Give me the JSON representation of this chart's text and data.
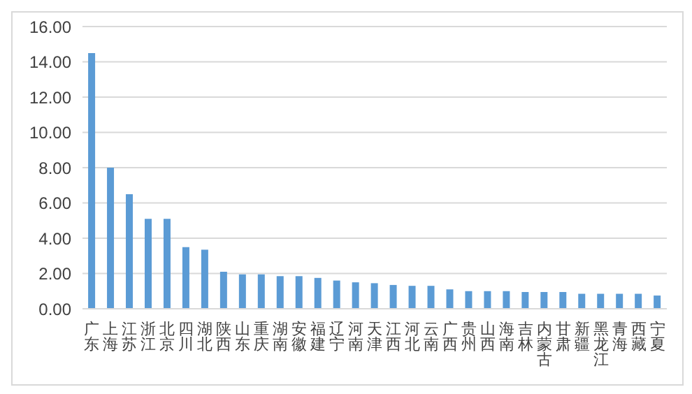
{
  "chart_data": {
    "type": "bar",
    "categories": [
      "广东",
      "上海",
      "江苏",
      "浙江",
      "北京",
      "四川",
      "湖北",
      "陕西",
      "山东",
      "重庆",
      "湖南",
      "安徽",
      "福建",
      "辽宁",
      "河南",
      "天津",
      "江西",
      "河北",
      "云南",
      "广西",
      "贵州",
      "山西",
      "海南",
      "吉林",
      "内蒙古",
      "甘肃",
      "新疆",
      "黑龙江",
      "青海",
      "西藏",
      "宁夏"
    ],
    "values": [
      14.5,
      8.0,
      6.5,
      5.1,
      5.1,
      3.5,
      3.35,
      2.1,
      1.95,
      1.95,
      1.85,
      1.85,
      1.75,
      1.6,
      1.5,
      1.45,
      1.35,
      1.3,
      1.3,
      1.1,
      1.0,
      1.0,
      1.0,
      0.95,
      0.95,
      0.95,
      0.85,
      0.85,
      0.85,
      0.85,
      0.75
    ],
    "color": "#5b9bd5",
    "ylim": [
      0,
      16
    ],
    "yticks": [
      {
        "value": 0,
        "label": "0.00"
      },
      {
        "value": 2,
        "label": "2.00"
      },
      {
        "value": 4,
        "label": "4.00"
      },
      {
        "value": 6,
        "label": "6.00"
      },
      {
        "value": 8,
        "label": "8.00"
      },
      {
        "value": 10,
        "label": "10.00"
      },
      {
        "value": 12,
        "label": "12.00"
      },
      {
        "value": 14,
        "label": "14.00"
      },
      {
        "value": 16,
        "label": "16.00"
      }
    ],
    "grid": "y"
  }
}
